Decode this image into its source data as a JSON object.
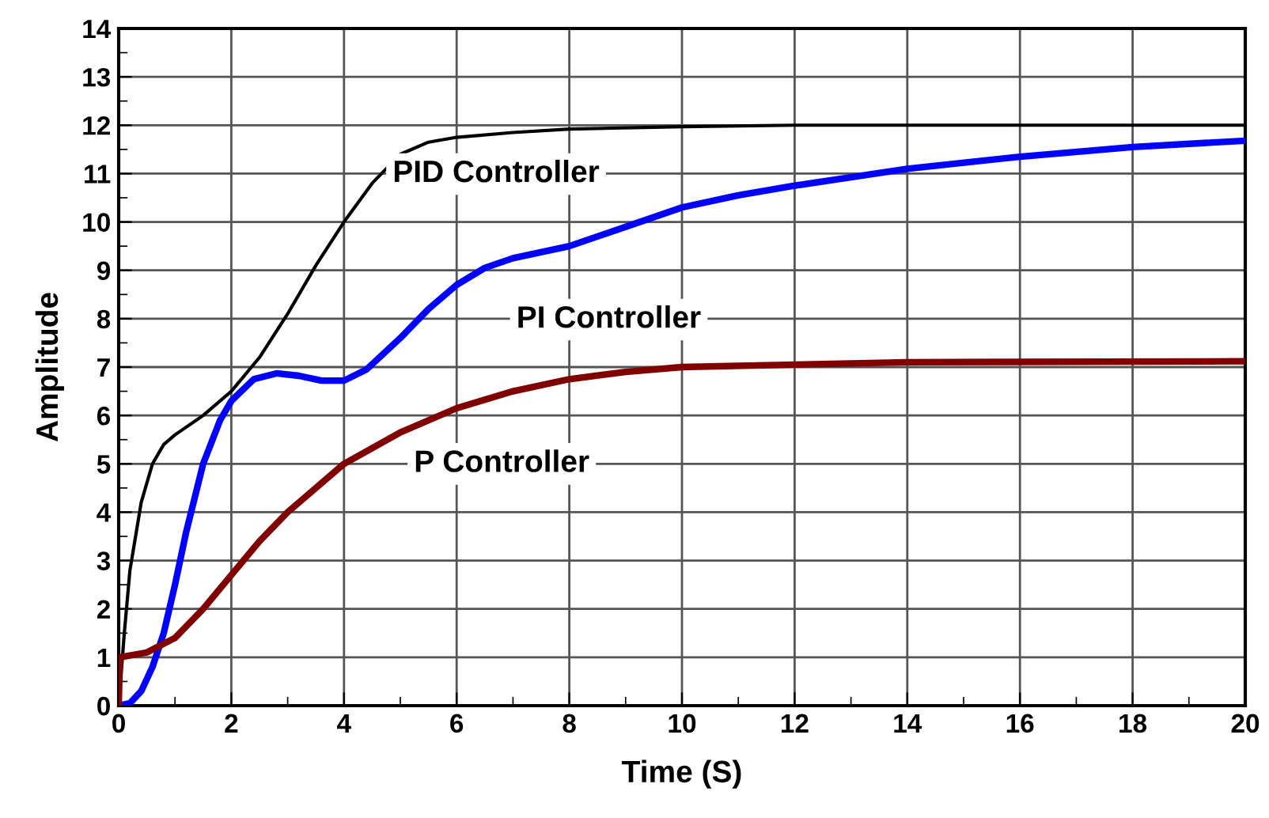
{
  "chart_data": {
    "type": "line",
    "xlabel": "Time (S)",
    "ylabel": "Amplitude",
    "xlim": [
      0,
      20
    ],
    "ylim": [
      0,
      14
    ],
    "xticks": [
      0,
      2,
      4,
      6,
      8,
      10,
      12,
      14,
      16,
      18,
      20
    ],
    "yticks": [
      0,
      1,
      2,
      3,
      4,
      5,
      6,
      7,
      8,
      9,
      10,
      11,
      12,
      13,
      14
    ],
    "grid": true,
    "legend": false,
    "marker": "none",
    "line_style": "solid",
    "series": [
      {
        "name": "PID Controller",
        "color": "#000000",
        "x": [
          0,
          0.1,
          0.2,
          0.4,
          0.6,
          0.8,
          1.0,
          1.5,
          2,
          2.5,
          3,
          3.5,
          4,
          4.5,
          5,
          5.5,
          6,
          7,
          8,
          10,
          12,
          20
        ],
        "values": [
          0,
          1.5,
          2.8,
          4.2,
          5.0,
          5.4,
          5.6,
          6.0,
          6.5,
          7.2,
          8.1,
          9.1,
          10.0,
          10.8,
          11.4,
          11.65,
          11.75,
          11.85,
          11.92,
          11.97,
          12,
          12
        ]
      },
      {
        "name": "PI Controller",
        "color": "#0000ff",
        "x": [
          0,
          0.2,
          0.4,
          0.6,
          0.8,
          1,
          1.2,
          1.5,
          1.8,
          2,
          2.4,
          2.8,
          3.2,
          3.6,
          4,
          4.4,
          5,
          5.5,
          6,
          6.5,
          7,
          8,
          9,
          10,
          11,
          12,
          14,
          16,
          18,
          20
        ],
        "values": [
          0,
          0.05,
          0.3,
          0.8,
          1.5,
          2.5,
          3.6,
          5.0,
          5.9,
          6.3,
          6.75,
          6.87,
          6.82,
          6.72,
          6.72,
          6.95,
          7.6,
          8.2,
          8.7,
          9.05,
          9.25,
          9.5,
          9.9,
          10.3,
          10.55,
          10.75,
          11.1,
          11.35,
          11.55,
          11.68
        ]
      },
      {
        "name": "P Controller",
        "color": "#800000",
        "x": [
          0,
          0.02,
          0.5,
          1,
          1.5,
          2,
          2.5,
          3,
          3.5,
          4,
          5,
          6,
          7,
          8,
          9,
          10,
          12,
          14,
          20
        ],
        "values": [
          0,
          1.0,
          1.1,
          1.4,
          2.0,
          2.7,
          3.4,
          4.0,
          4.5,
          5.0,
          5.65,
          6.15,
          6.5,
          6.75,
          6.9,
          7.0,
          7.05,
          7.1,
          7.12
        ]
      }
    ]
  }
}
